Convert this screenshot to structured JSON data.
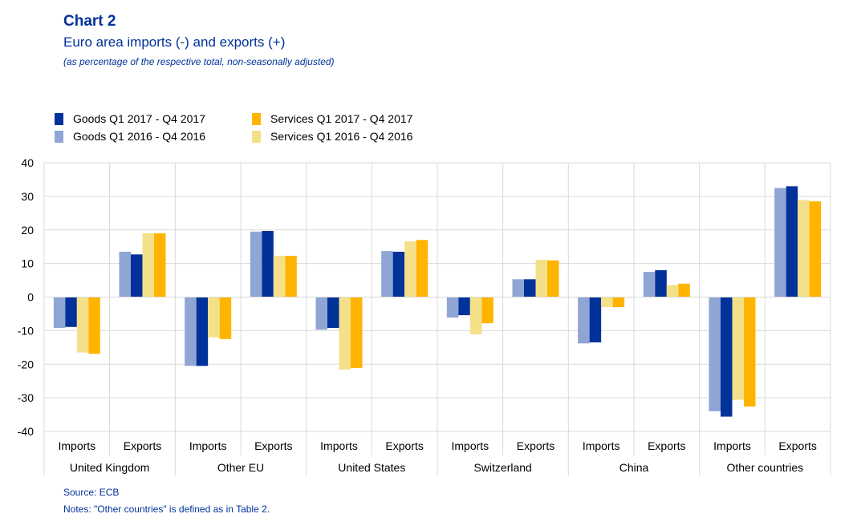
{
  "header": {
    "chart_no": "Chart 2",
    "title": "Euro area imports (-) and exports (+)",
    "subtitle": "(as percentage of the respective total, non-seasonally adjusted)"
  },
  "footer": {
    "source": "Source: ECB",
    "notes": "Notes: \"Other countries\" is defined as in Table 2."
  },
  "chart_data": {
    "type": "bar",
    "ylim": [
      -40,
      40
    ],
    "yticks": [
      40,
      30,
      20,
      10,
      0,
      -10,
      -20,
      -30,
      -40
    ],
    "grid": true,
    "legend_position": "top-left",
    "groups": [
      "United Kingdom",
      "Other EU",
      "United States",
      "Switzerland",
      "China",
      "Other countries"
    ],
    "subcategories": [
      "Imports",
      "Exports"
    ],
    "categories": [
      "United Kingdom Imports",
      "United Kingdom Exports",
      "Other EU Imports",
      "Other EU Exports",
      "United States Imports",
      "United States Exports",
      "Switzerland Imports",
      "Switzerland Exports",
      "China Imports",
      "China Exports",
      "Other countries Imports",
      "Other countries Exports"
    ],
    "series": [
      {
        "name": "Goods Q1 2016 - Q4 2016",
        "color": "#8fa5d4",
        "values": [
          -9.2,
          13.5,
          -20.5,
          19.5,
          -9.7,
          13.7,
          -6.1,
          5.3,
          -13.8,
          7.5,
          -34.0,
          32.5
        ]
      },
      {
        "name": "Goods Q1 2017 - Q4 2017",
        "color": "#003299",
        "values": [
          -8.9,
          12.7,
          -20.5,
          19.7,
          -9.2,
          13.5,
          -5.4,
          5.3,
          -13.5,
          8.0,
          -35.6,
          33.0
        ]
      },
      {
        "name": "Services Q1 2016 - Q4 2016",
        "color": "#f5e08a",
        "values": [
          -16.5,
          19.0,
          -12.0,
          12.3,
          -21.6,
          16.6,
          -11.1,
          11.1,
          -3.0,
          3.6,
          -30.6,
          28.9
        ]
      },
      {
        "name": "Services Q1 2017 - Q4 2017",
        "color": "#ffb400",
        "values": [
          -16.9,
          19.0,
          -12.5,
          12.3,
          -21.1,
          17.0,
          -7.8,
          10.9,
          -3.0,
          4.0,
          -32.6,
          28.5
        ]
      }
    ]
  }
}
